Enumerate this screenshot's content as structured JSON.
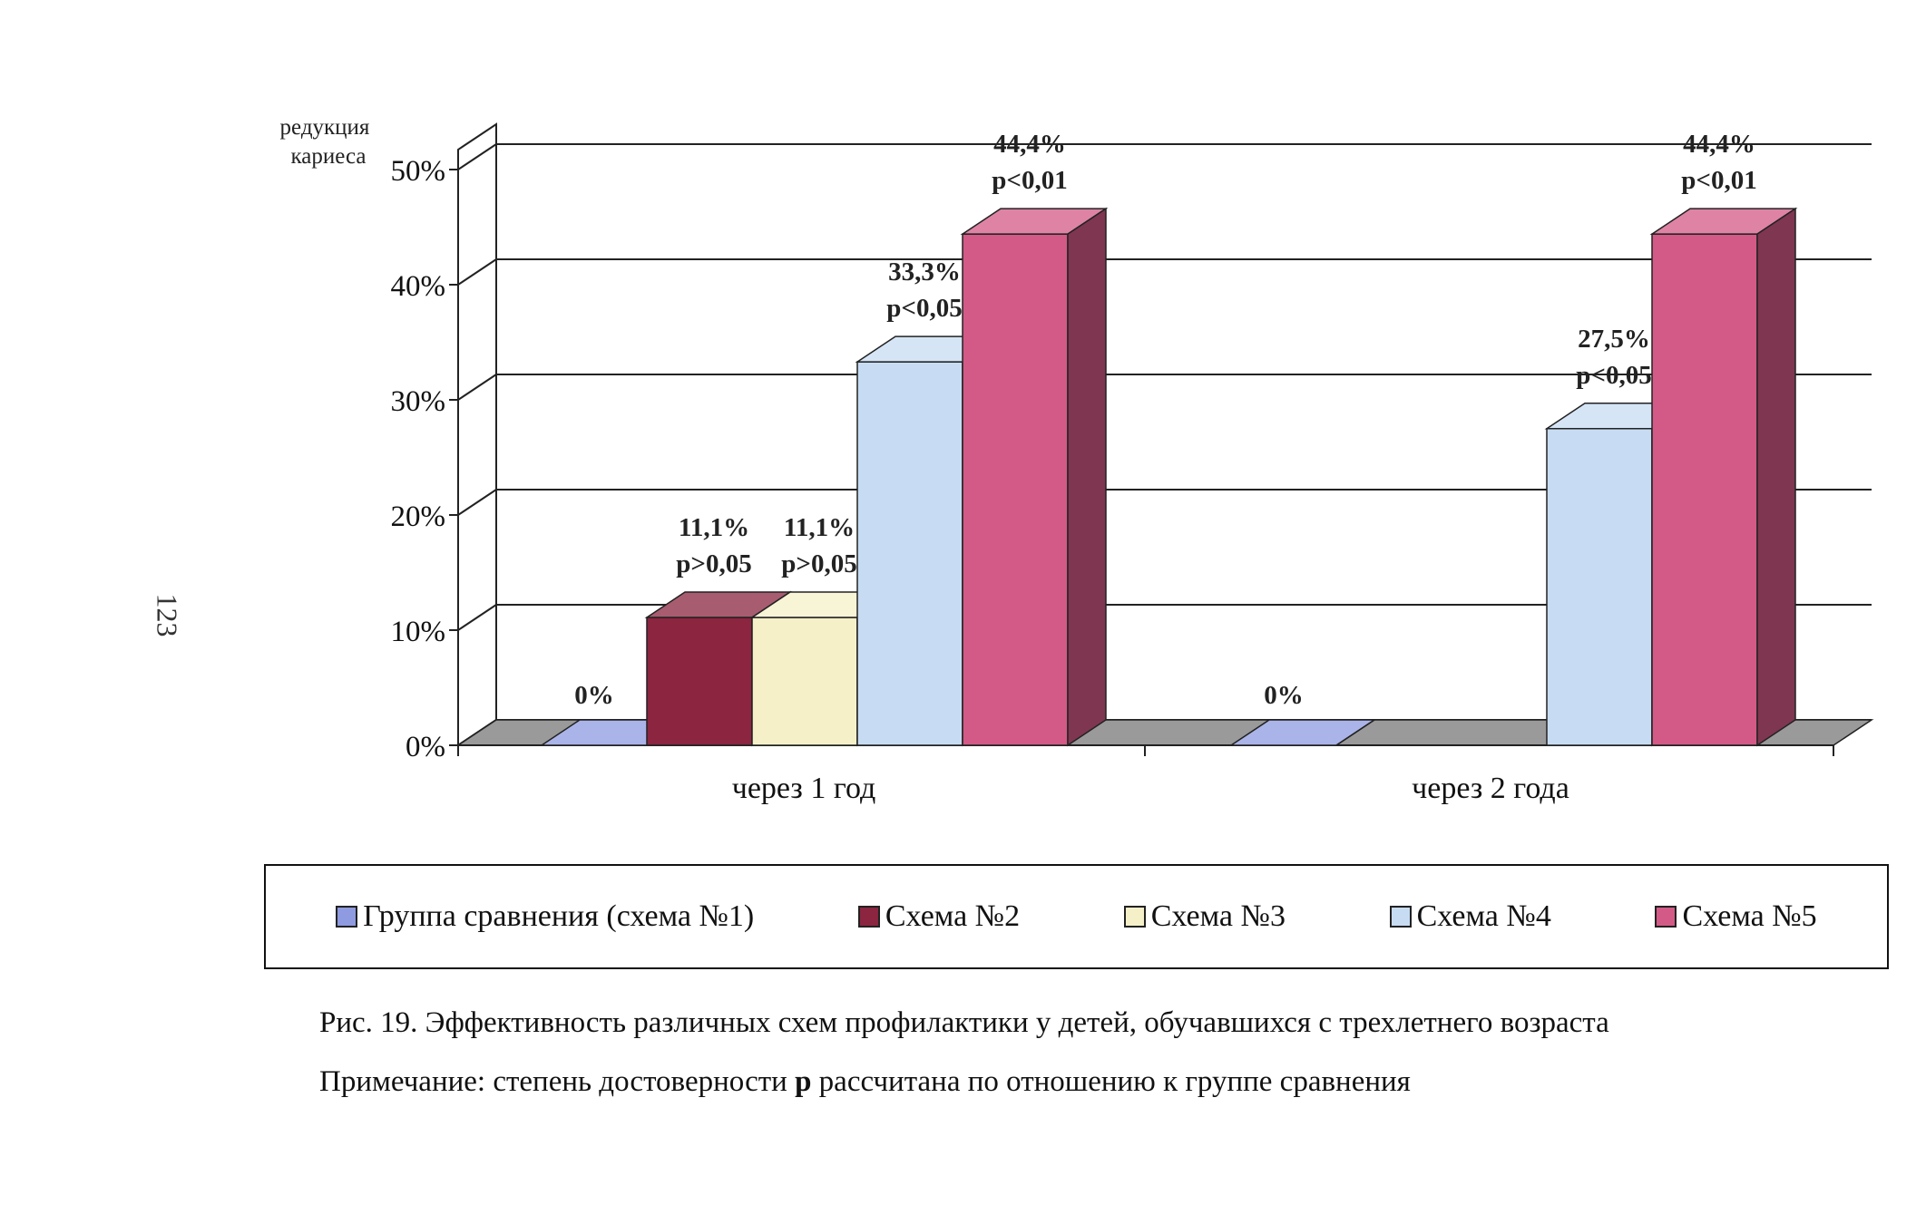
{
  "page_number": "123",
  "chart_data": {
    "type": "bar",
    "ylabel": "редукция кариеса",
    "ylim": [
      0,
      50
    ],
    "yticks": [
      "0%",
      "10%",
      "20%",
      "30%",
      "40%",
      "50%"
    ],
    "grid": true,
    "categories": [
      "через 1 год",
      "через 2 года"
    ],
    "series": [
      {
        "name": "Группа сравнения (схема №1)",
        "values": [
          0,
          0
        ],
        "color": "#8e9be0",
        "labels": [
          [
            "0%"
          ],
          [
            "0%"
          ]
        ]
      },
      {
        "name": "Схема №2",
        "values": [
          11.1,
          null
        ],
        "color": "#8b2540",
        "labels": [
          [
            "11,1%",
            "p>0,05"
          ],
          null
        ]
      },
      {
        "name": "Схема №3",
        "values": [
          11.1,
          null
        ],
        "color": "#f5f0c8",
        "labels": [
          [
            "11,1%",
            "p>0,05"
          ],
          null
        ]
      },
      {
        "name": "Схема №4",
        "values": [
          33.3,
          27.5
        ],
        "color": "#c7dcf3",
        "labels": [
          [
            "33,3%",
            "p<0,05"
          ],
          [
            "27,5%",
            "p<0,05"
          ]
        ]
      },
      {
        "name": "Схема №5",
        "values": [
          44.4,
          44.4
        ],
        "color": "#d35a86",
        "labels": [
          [
            "44,4%",
            "p<0,01"
          ],
          [
            "44,4%",
            "p<0,01"
          ]
        ]
      }
    ],
    "legend_position": "bottom"
  },
  "legend": {
    "items": [
      {
        "label": "Группа сравнения (схема №1)",
        "color": "#8e9be0"
      },
      {
        "label": "Схема №2",
        "color": "#8b2540"
      },
      {
        "label": "Схема №3",
        "color": "#f5f0c8"
      },
      {
        "label": "Схема №4",
        "color": "#c7dcf3"
      },
      {
        "label": "Схема №5",
        "color": "#d35a86"
      }
    ]
  },
  "caption": "Рис. 19. Эффективность различных схем профилактики у детей, обучавшихся с трехлетнего возраста",
  "note": {
    "prefix": "Примечание: степень достоверности ",
    "bold": "p",
    "suffix": " рассчитана по отношению к группе сравнения"
  }
}
